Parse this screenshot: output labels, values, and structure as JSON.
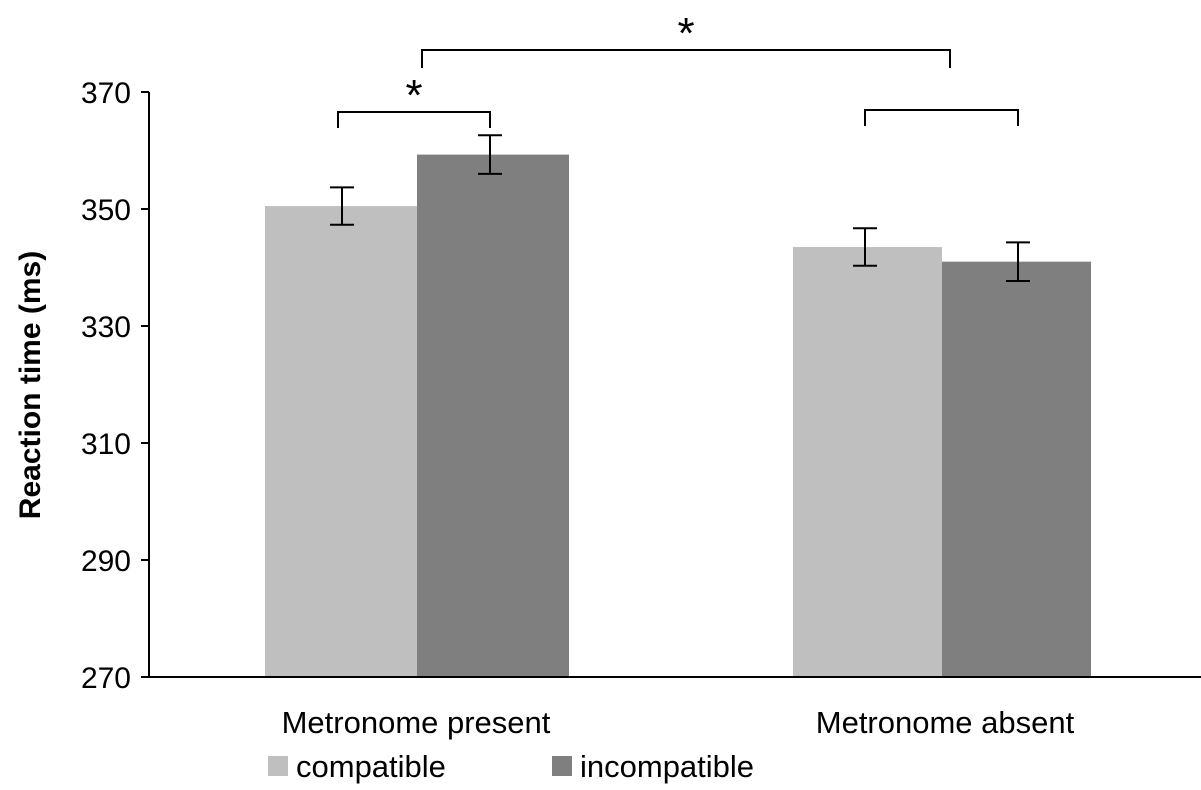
{
  "chart_data": {
    "type": "bar",
    "title": "",
    "xlabel": "",
    "ylabel": "Reaction time (ms)",
    "ylim": [
      270,
      370
    ],
    "yticks": [
      "270",
      "290",
      "310",
      "330",
      "350",
      "370"
    ],
    "categories": [
      "Metronome present",
      "Metronome absent"
    ],
    "series": [
      {
        "name": "compatible",
        "color": "#bfbfbf",
        "values": [
          350.5,
          343.5
        ],
        "errors": [
          3.2,
          3.2
        ]
      },
      {
        "name": "incompatible",
        "color": "#7f7f7f",
        "values": [
          359.3,
          341.0
        ],
        "errors": [
          3.3,
          3.3
        ]
      }
    ],
    "legend_position": "bottom-left",
    "grid": false,
    "significance": [
      {
        "label": "*",
        "between": "Metronome present compatible vs incompatible"
      },
      {
        "label": "",
        "between": "Metronome absent compatible vs incompatible"
      },
      {
        "label": "*",
        "between": "Metronome present vs Metronome absent"
      }
    ]
  }
}
